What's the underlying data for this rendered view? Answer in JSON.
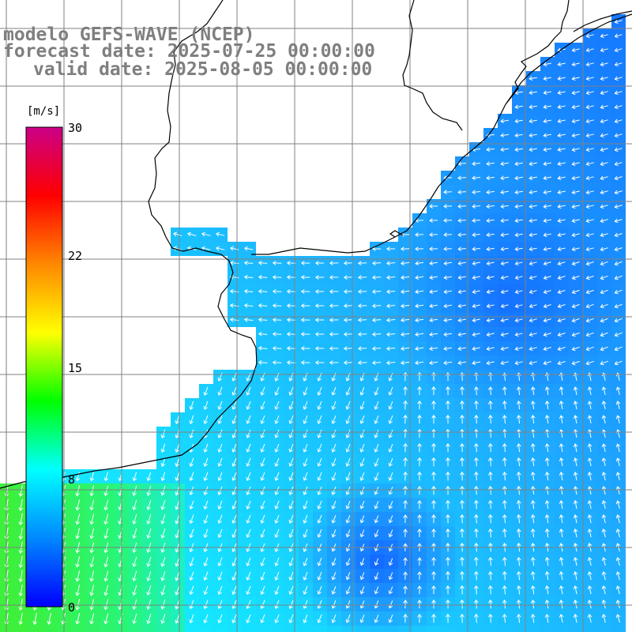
{
  "title": {
    "model": "modelo GEFS-WAVE (NCEP)",
    "forecast": "forecast date: 2025-07-25 00:00:00",
    "valid": "valid date: 2025-08-05 00:00:00"
  },
  "colorbar": {
    "unit": "[m/s]",
    "min": 0,
    "max": 30,
    "ticks": [
      "30",
      "22",
      "15",
      "8",
      "0"
    ],
    "tick_values": [
      30,
      22,
      15,
      8,
      0
    ],
    "colors": [
      "#0000ff",
      "#0088ff",
      "#00ffff",
      "#00ff00",
      "#ffff00",
      "#ff8800",
      "#ff0000",
      "#cc0088"
    ]
  },
  "map": {
    "field": "wind speed and direction",
    "ocean_color_low": "#0a3cff",
    "ocean_color_mid": "#22aaff",
    "ocean_color_high": "#33ee66",
    "land_color": "#ffffff",
    "coast_color": "#000000",
    "grid_color": "#808080",
    "arrow_color": "#ffffff"
  }
}
